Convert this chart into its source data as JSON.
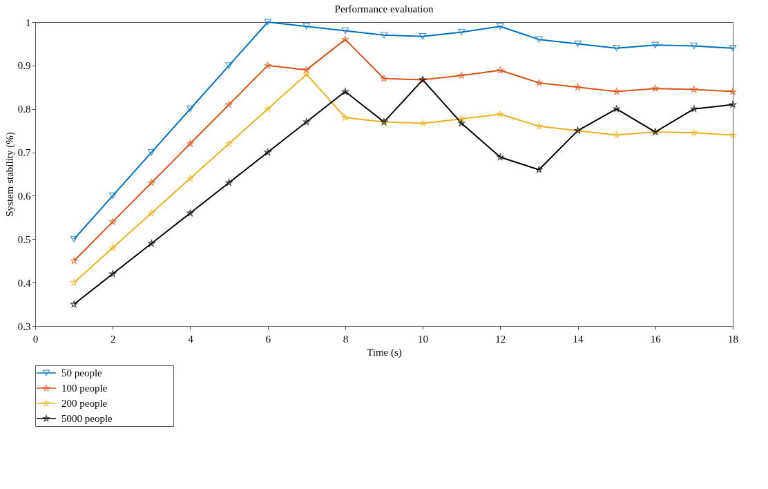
{
  "chart_data": {
    "type": "line",
    "title": "Performance evaluation",
    "xlabel": "Time (s)",
    "ylabel": "System stability (%)",
    "x": [
      1,
      2,
      3,
      4,
      5,
      6,
      7,
      8,
      9,
      10,
      11,
      12,
      13,
      14,
      15,
      16,
      17,
      18
    ],
    "series": [
      {
        "name": "50 people",
        "color": "#0072bd",
        "marker": "triangle",
        "values": [
          0.5,
          0.6,
          0.7,
          0.8,
          0.9,
          1.0,
          0.99,
          0.98,
          0.97,
          0.967,
          0.977,
          0.99,
          0.96,
          0.95,
          0.94,
          0.947,
          0.945,
          0.94
        ]
      },
      {
        "name": "100 people",
        "color": "#d95319",
        "marker": "star",
        "values": [
          0.45,
          0.54,
          0.63,
          0.72,
          0.81,
          0.9,
          0.89,
          0.96,
          0.87,
          0.867,
          0.877,
          0.889,
          0.86,
          0.85,
          0.84,
          0.847,
          0.845,
          0.84
        ]
      },
      {
        "name": "200 people",
        "color": "#edb120",
        "marker": "star",
        "values": [
          0.4,
          0.48,
          0.56,
          0.64,
          0.72,
          0.8,
          0.88,
          0.78,
          0.77,
          0.767,
          0.777,
          0.788,
          0.76,
          0.75,
          0.74,
          0.747,
          0.745,
          0.74
        ]
      },
      {
        "name": "5000 people",
        "color": "#000000",
        "marker": "star",
        "values": [
          0.35,
          0.42,
          0.49,
          0.56,
          0.63,
          0.7,
          0.77,
          0.84,
          0.77,
          0.867,
          0.767,
          0.689,
          0.66,
          0.75,
          0.8,
          0.747,
          0.8,
          0.81
        ]
      }
    ],
    "xlim": [
      0,
      18
    ],
    "xticks": [
      0,
      2,
      4,
      6,
      8,
      10,
      12,
      14,
      16,
      18
    ],
    "ylim": [
      0.3,
      1
    ],
    "yticks": [
      0.3,
      0.4,
      0.5,
      0.6,
      0.7,
      0.8,
      0.9,
      1
    ],
    "grid": false,
    "legend": "bottom left",
    "line_style": "solid"
  }
}
